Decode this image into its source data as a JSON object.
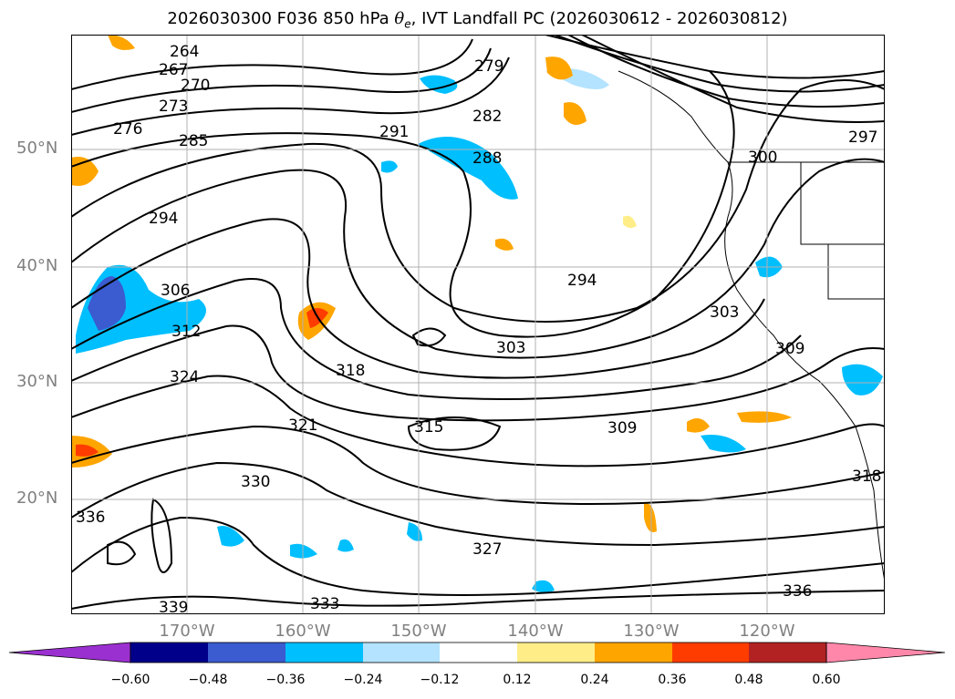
{
  "title": {
    "prefix": "2026030300 F036 850 hPa ",
    "symbol": "θ",
    "subscript": "e",
    "suffix": ", IVT Landfall PC (2026030612 - 2026030812)"
  },
  "latitudes": [
    "50°N",
    "40°N",
    "30°N",
    "20°N"
  ],
  "longitudes": [
    "170°W",
    "160°W",
    "150°W",
    "140°W",
    "130°W",
    "120°W"
  ],
  "contour_labels": [
    "264",
    "267",
    "270",
    "273",
    "276",
    "285",
    "291",
    "279",
    "282",
    "288",
    "294",
    "306",
    "312",
    "324",
    "318",
    "321",
    "330",
    "336",
    "339",
    "333",
    "327",
    "315",
    "303",
    "309",
    "300",
    "297",
    "294",
    "303",
    "309",
    "318",
    "336"
  ],
  "colorbar": {
    "labels": [
      "−0.60",
      "−0.48",
      "−0.36",
      "−0.24",
      "−0.12",
      "0.12",
      "0.24",
      "0.36",
      "0.48",
      "0.60"
    ],
    "colors": [
      "#9b30d0",
      "#00008b",
      "#3b5bd0",
      "#00bfff",
      "#b3e3ff",
      "#ffffff",
      "#ffee88",
      "#ffa500",
      "#ff3c00",
      "#b22222",
      "#ff88aa"
    ]
  },
  "colors": {
    "grid": "#b0b0b0",
    "contour": "#000000",
    "tick_label": "#808080"
  }
}
